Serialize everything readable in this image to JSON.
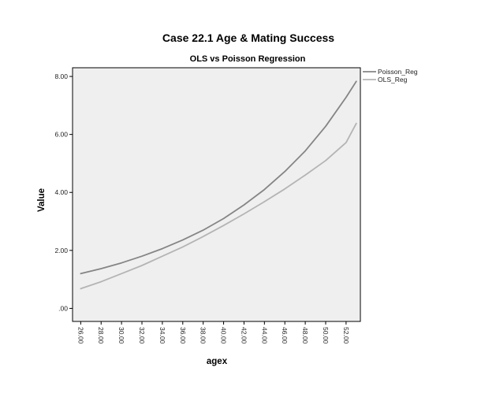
{
  "chart_data": {
    "type": "line",
    "title": "Case 22.1 Age & Mating Success",
    "subtitle": "OLS vs Poisson Regression",
    "xlabel": "agex",
    "ylabel": "Value",
    "xlim": [
      25.2,
      53.4
    ],
    "ylim": [
      -0.45,
      8.3
    ],
    "x_ticks": [
      26,
      28,
      30,
      32,
      34,
      36,
      38,
      40,
      42,
      44,
      46,
      48,
      50,
      52
    ],
    "x_tick_labels": [
      "26.00",
      "28.00",
      "30.00",
      "32.00",
      "34.00",
      "36.00",
      "38.00",
      "40.00",
      "42.00",
      "44.00",
      "46.00",
      "48.00",
      "50.00",
      "52.00"
    ],
    "y_ticks": [
      0,
      2,
      4,
      6,
      8
    ],
    "y_tick_labels": [
      ".00",
      "2.00",
      "4.00",
      "6.00",
      "8.00"
    ],
    "grid": false,
    "legend_position": "right",
    "background": "#efefef",
    "x": [
      26,
      28,
      30,
      32,
      34,
      36,
      38,
      40,
      42,
      44,
      46,
      48,
      50,
      52,
      53
    ],
    "series": [
      {
        "name": "Poisson_Reg",
        "color": "#858585",
        "values": [
          1.2,
          1.37,
          1.57,
          1.8,
          2.06,
          2.36,
          2.7,
          3.1,
          3.57,
          4.1,
          4.72,
          5.43,
          6.28,
          7.28,
          7.83
        ]
      },
      {
        "name": "OLS_Reg",
        "color": "#b4b4b4",
        "values": [
          0.68,
          0.92,
          1.2,
          1.48,
          1.8,
          2.12,
          2.48,
          2.86,
          3.26,
          3.68,
          4.12,
          4.6,
          5.1,
          5.72,
          6.38
        ]
      }
    ]
  }
}
